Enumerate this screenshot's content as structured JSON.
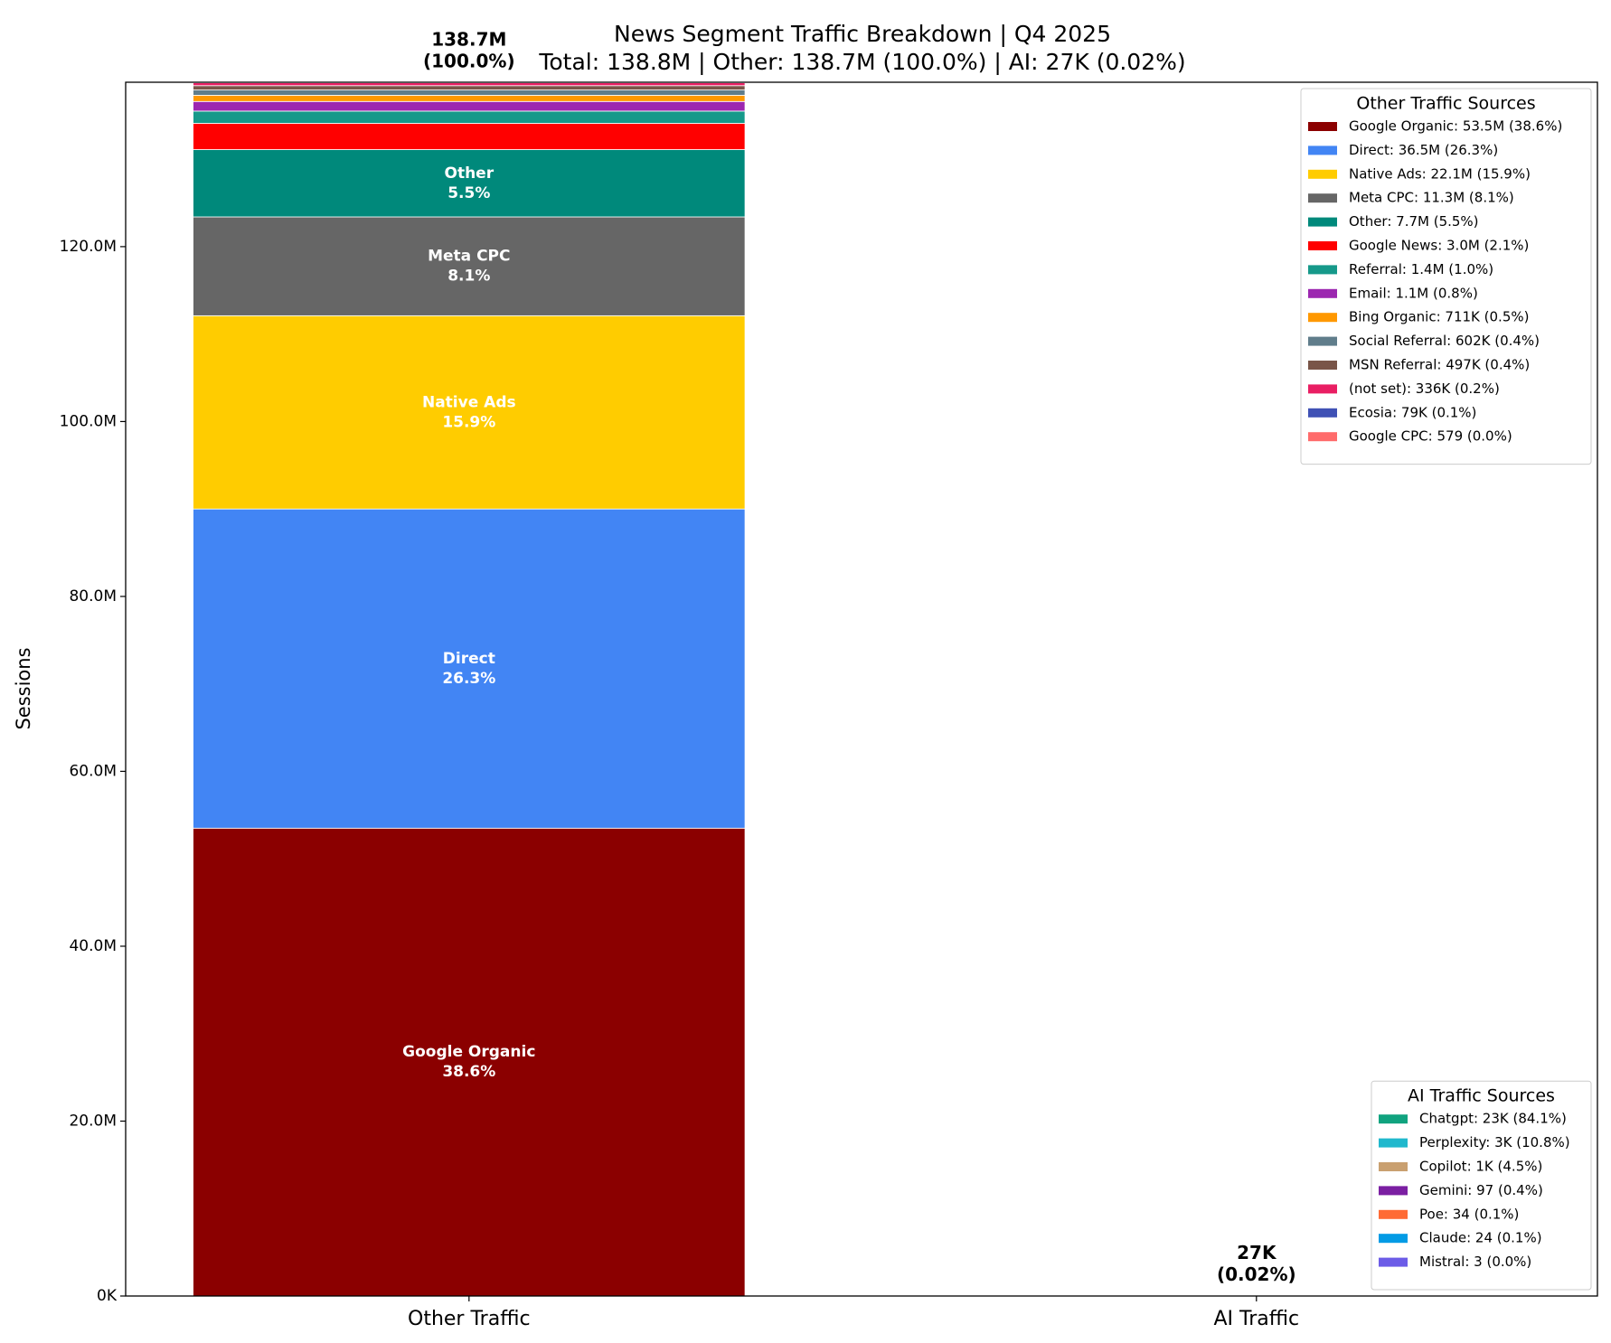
{
  "chart_data": {
    "type": "stacked_bar",
    "title": "News Segment Traffic Breakdown | Q4 2025",
    "subtitle": "Total: 138.8M | Other: 138.7M (100.0%) | AI: 27K (0.02%)",
    "y_label": "Sessions",
    "categories": [
      "Other Traffic",
      "AI Traffic"
    ],
    "total_labels": [
      [
        "138.7M",
        "(100.0%)"
      ],
      [
        "27K",
        "(0.02%)"
      ]
    ],
    "ylim": [
      0,
      138800000
    ],
    "yticks": [
      {
        "value": 0,
        "label": "0K"
      },
      {
        "value": 20000000,
        "label": "20.0M"
      },
      {
        "value": 40000000,
        "label": "40.0M"
      },
      {
        "value": 60000000,
        "label": "60.0M"
      },
      {
        "value": 80000000,
        "label": "80.0M"
      },
      {
        "value": 100000000,
        "label": "100.0M"
      },
      {
        "value": 120000000,
        "label": "120.0M"
      }
    ],
    "grid": false,
    "legends": [
      {
        "title": "Other Traffic Sources",
        "loc": "upper right"
      },
      {
        "title": "AI Traffic Sources",
        "loc": "lower right"
      }
    ],
    "series": [
      {
        "name": "Google Organic",
        "color": "#8b0000",
        "values": [
          53500000,
          null
        ],
        "legend_label": "Google Organic: 53.5M (38.6%)",
        "bar_label": "38.6%"
      },
      {
        "name": "Direct",
        "color": "#4285f4",
        "values": [
          36500000,
          null
        ],
        "legend_label": "Direct: 36.5M (26.3%)",
        "bar_label": "26.3%"
      },
      {
        "name": "Native Ads",
        "color": "#ffcc00",
        "values": [
          22100000,
          null
        ],
        "legend_label": "Native Ads: 22.1M (15.9%)",
        "bar_label": "15.9%"
      },
      {
        "name": "Meta CPC",
        "color": "#666666",
        "values": [
          11300000,
          null
        ],
        "legend_label": "Meta CPC: 11.3M (8.1%)",
        "bar_label": "8.1%"
      },
      {
        "name": "Other",
        "color": "#00897b",
        "values": [
          7700000,
          null
        ],
        "legend_label": "Other: 7.7M (5.5%)",
        "bar_label": "5.5%"
      },
      {
        "name": "Google News",
        "color": "#ff0000",
        "values": [
          3000000,
          null
        ],
        "legend_label": "Google News: 3.0M (2.1%)"
      },
      {
        "name": "Referral",
        "color": "#16998a",
        "values": [
          1400000,
          null
        ],
        "legend_label": "Referral: 1.4M (1.0%)"
      },
      {
        "name": "Email",
        "color": "#9c27b0",
        "values": [
          1100000,
          null
        ],
        "legend_label": "Email: 1.1M (0.8%)"
      },
      {
        "name": "Bing Organic",
        "color": "#ff9800",
        "values": [
          711000,
          null
        ],
        "legend_label": "Bing Organic: 711K (0.5%)"
      },
      {
        "name": "Social Referral",
        "color": "#607d8b",
        "values": [
          602000,
          null
        ],
        "legend_label": "Social Referral: 602K (0.4%)"
      },
      {
        "name": "MSN Referral",
        "color": "#795548",
        "values": [
          497000,
          null
        ],
        "legend_label": "MSN Referral: 497K (0.4%)"
      },
      {
        "name": "(not set)",
        "color": "#e91e63",
        "values": [
          336000,
          null
        ],
        "legend_label": "(not set): 336K (0.2%)"
      },
      {
        "name": "Ecosia",
        "color": "#3f51b5",
        "values": [
          79000,
          null
        ],
        "legend_label": "Ecosia: 79K (0.1%)"
      },
      {
        "name": "Google CPC",
        "color": "#ff6b6b",
        "values": [
          579,
          null
        ],
        "legend_label": "Google CPC: 579 (0.0%)"
      },
      {
        "name": "Chatgpt",
        "color": "#10a37f",
        "values": [
          null,
          23000
        ],
        "legend_label": "Chatgpt: 23K (84.1%)"
      },
      {
        "name": "Perplexity",
        "color": "#20b8cd",
        "values": [
          null,
          3000
        ],
        "legend_label": "Perplexity: 3K (10.8%)"
      },
      {
        "name": "Copilot",
        "color": "#c9a070",
        "values": [
          null,
          1000
        ],
        "legend_label": "Copilot: 1K (4.5%)"
      },
      {
        "name": "Gemini",
        "color": "#7b1fa2",
        "values": [
          null,
          97
        ],
        "legend_label": "Gemini: 97 (0.4%)"
      },
      {
        "name": "Poe",
        "color": "#ff6b35",
        "values": [
          null,
          34
        ],
        "legend_label": "Poe: 34 (0.1%)"
      },
      {
        "name": "Claude",
        "color": "#039be5",
        "values": [
          null,
          24
        ],
        "legend_label": "Claude: 24 (0.1%)"
      },
      {
        "name": "Mistral",
        "color": "#6c5ce7",
        "values": [
          null,
          3
        ],
        "legend_label": "Mistral: 3 (0.0%)"
      }
    ]
  }
}
